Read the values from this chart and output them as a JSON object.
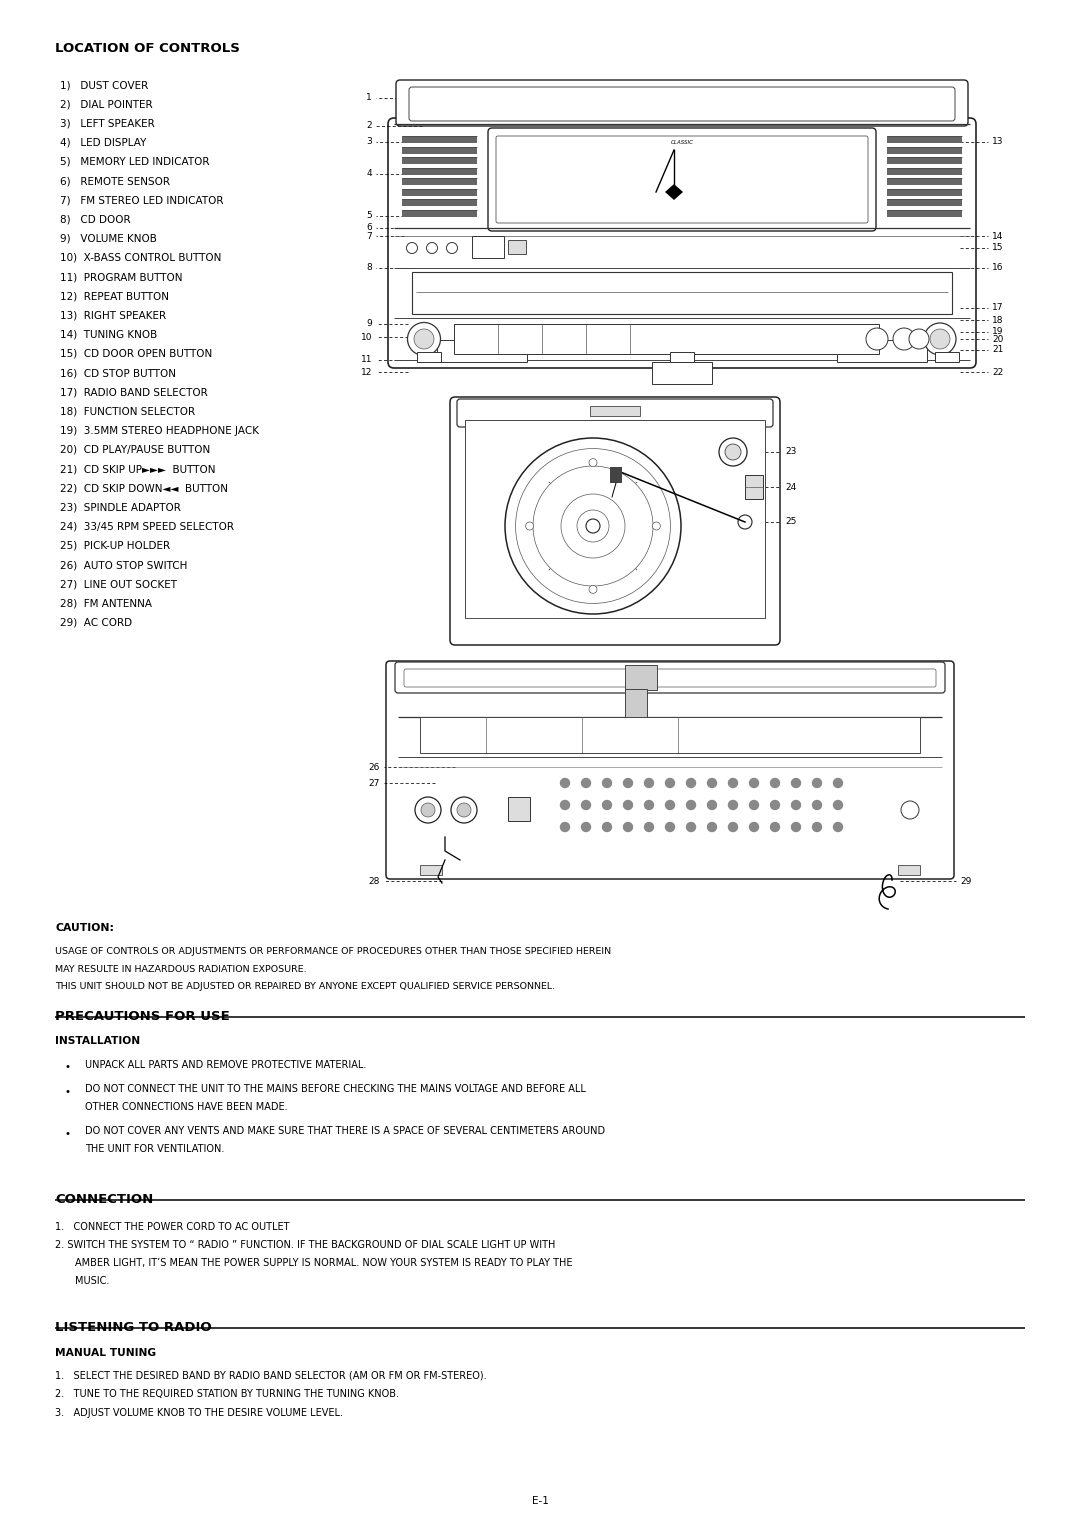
{
  "bg_color": "#ffffff",
  "page_width": 10.8,
  "page_height": 15.28,
  "ml": 0.55,
  "mr": 0.55,
  "loc_title": "LOCATION OF CONTROLS",
  "loc_items_left": [
    "1)   DUST COVER",
    "2)   DIAL POINTER",
    "3)   LEFT SPEAKER",
    "4)   LED DISPLAY",
    "5)   MEMORY LED INDICATOR",
    "6)   REMOTE SENSOR",
    "7)   FM STEREO LED INDICATOR",
    "8)   CD DOOR",
    "9)   VOLUME KNOB",
    "10)  X-BASS CONTROL BUTTON",
    "11)  PROGRAM BUTTON",
    "12)  REPEAT BUTTON",
    "13)  RIGHT SPEAKER",
    "14)  TUNING KNOB",
    "15)  CD DOOR OPEN BUTTON",
    "16)  CD STOP BUTTON",
    "17)  RADIO BAND SELECTOR",
    "18)  FUNCTION SELECTOR",
    "19)  3.5MM STEREO HEADPHONE JACK",
    "20)  CD PLAY/PAUSE BUTTON",
    "21)  CD SKIP UP►►►  BUTTON",
    "22)  CD SKIP DOWN◄◄  BUTTON",
    "23)  SPINDLE ADAPTOR",
    "24)  33/45 RPM SPEED SELECTOR",
    "25)  PICK-UP HOLDER",
    "26)  AUTO STOP SWITCH",
    "27)  LINE OUT SOCKET",
    "28)  FM ANTENNA",
    "29)  AC CORD"
  ],
  "caution_label": "CAUTION:",
  "caution_text1": "USAGE OF CONTROLS OR ADJUSTMENTS OR PERFORMANCE OF PROCEDURES OTHER THAN THOSE SPECIFIED HEREIN MAY RESULTE IN HAZARDOUS RADIATION EXPOSURE.",
  "caution_text2": "THIS UNIT SHOULD NOT BE ADJUSTED OR REPAIRED BY ANYONE EXCEPT QUALIFIED SERVICE PERSONNEL.",
  "prec_title": "PRECAUTIONS FOR USE",
  "install_label": "INSTALLATION",
  "bullets": [
    "UNPACK ALL PARTS AND REMOVE PROTECTIVE MATERIAL.",
    "DO NOT CONNECT THE UNIT TO THE MAINS BEFORE CHECKING THE MAINS VOLTAGE AND BEFORE ALL OTHER CONNECTIONS HAVE BEEN MADE.",
    "DO NOT COVER ANY VENTS AND MAKE SURE THAT THERE IS A SPACE OF SEVERAL CENTIMETERS AROUND THE UNIT FOR VENTILATION."
  ],
  "conn_title": "CONNECTION",
  "conn_items": [
    "1.   CONNECT THE POWER CORD TO AC OUTLET",
    "2.   SWITCH THE SYSTEM TO “ RADIO ” FUNCTION.  IF THE BACKGROUND OF DIAL SCALE LIGHT UP WITH AMBER LIGHT, IT’S MEAN THE POWER SUPPLY IS NORMAL.  NOW YOUR SYSTEM IS READY TO PLAY THE MUSIC."
  ],
  "listen_title": "LISTENING TO RADIO",
  "manual_label": "MANUAL TUNING",
  "tune_items": [
    "1.   SELECT THE DESIRED BAND BY RADIO BAND SELECTOR (AM OR FM OR FM-STEREO).",
    "2.   TUNE TO THE REQUIRED STATION BY TURNING THE TUNING KNOB.",
    "3.   ADJUST VOLUME KNOB TO THE DESIRE VOLUME LEVEL."
  ],
  "page_num": "E-1",
  "fs_title": 9.5,
  "fs_body": 7.5,
  "fs_small": 7.0,
  "fs_diag_num": 6.5
}
